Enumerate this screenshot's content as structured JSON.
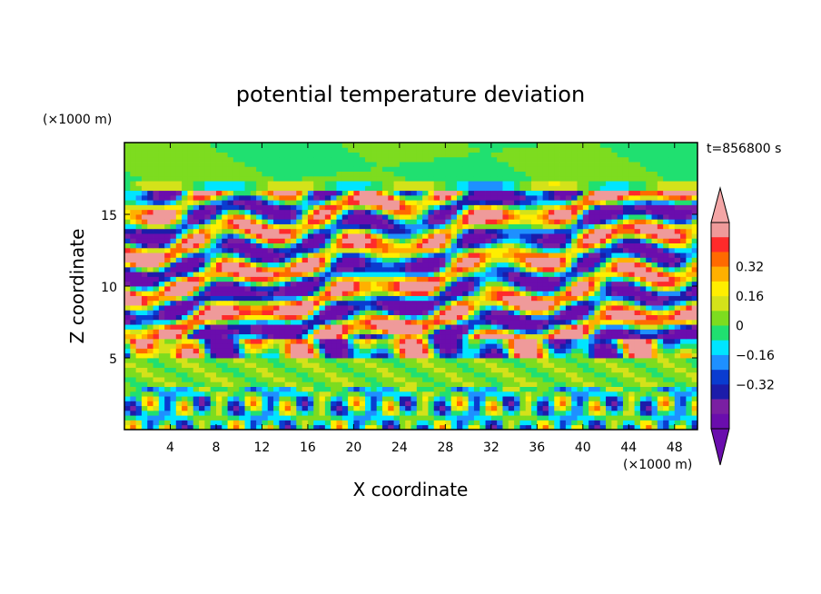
{
  "chart_data": {
    "type": "heatmap",
    "title": "potential temperature deviation",
    "xlabel": "X coordinate",
    "ylabel": "Z coordinate",
    "x_unit": "(×1000 m)",
    "y_unit": "(×1000 m)",
    "time_label": "t=856800 s",
    "xlim": [
      0,
      50
    ],
    "ylim": [
      0,
      20
    ],
    "x_ticks": [
      4,
      8,
      12,
      16,
      20,
      24,
      28,
      32,
      36,
      40,
      44,
      48
    ],
    "y_ticks": [
      5,
      10,
      15
    ],
    "colorbar": {
      "levels": [
        -0.48,
        -0.4,
        -0.32,
        -0.24,
        -0.16,
        -0.08,
        0,
        0.08,
        0.16,
        0.24,
        0.32,
        0.4,
        0.48
      ],
      "labels": [
        "0.32",
        "0.16",
        "0",
        "−0.16",
        "−0.32"
      ],
      "label_values": [
        0.32,
        0.16,
        0,
        -0.16,
        -0.32
      ],
      "colors": [
        "#6a0dad",
        "#7a1fa2",
        "#1c1caa",
        "#0a3cd0",
        "#1e90ff",
        "#00e5ff",
        "#20e070",
        "#7ddc1f",
        "#d4e21a",
        "#ffee00",
        "#ffb000",
        "#ff6a00",
        "#ff2a2a",
        "#ef9a9a"
      ],
      "under_color": "#6a0dad",
      "over_color": "#f4a6a6"
    },
    "field_description_layers": [
      {
        "z_range": [
          16.5,
          20
        ],
        "pattern": "mostly green/yellow, near zero"
      },
      {
        "z_range": [
          5,
          17
        ],
        "pattern": "alternating tilted bands of strong positive (pink/red) and negative (purple/blue)"
      },
      {
        "z_range": [
          3,
          5
        ],
        "pattern": "green/yellow band near zero"
      },
      {
        "z_range": [
          0,
          3
        ],
        "pattern": "small-scale vertical cells, mixed blue/green/orange"
      }
    ]
  }
}
